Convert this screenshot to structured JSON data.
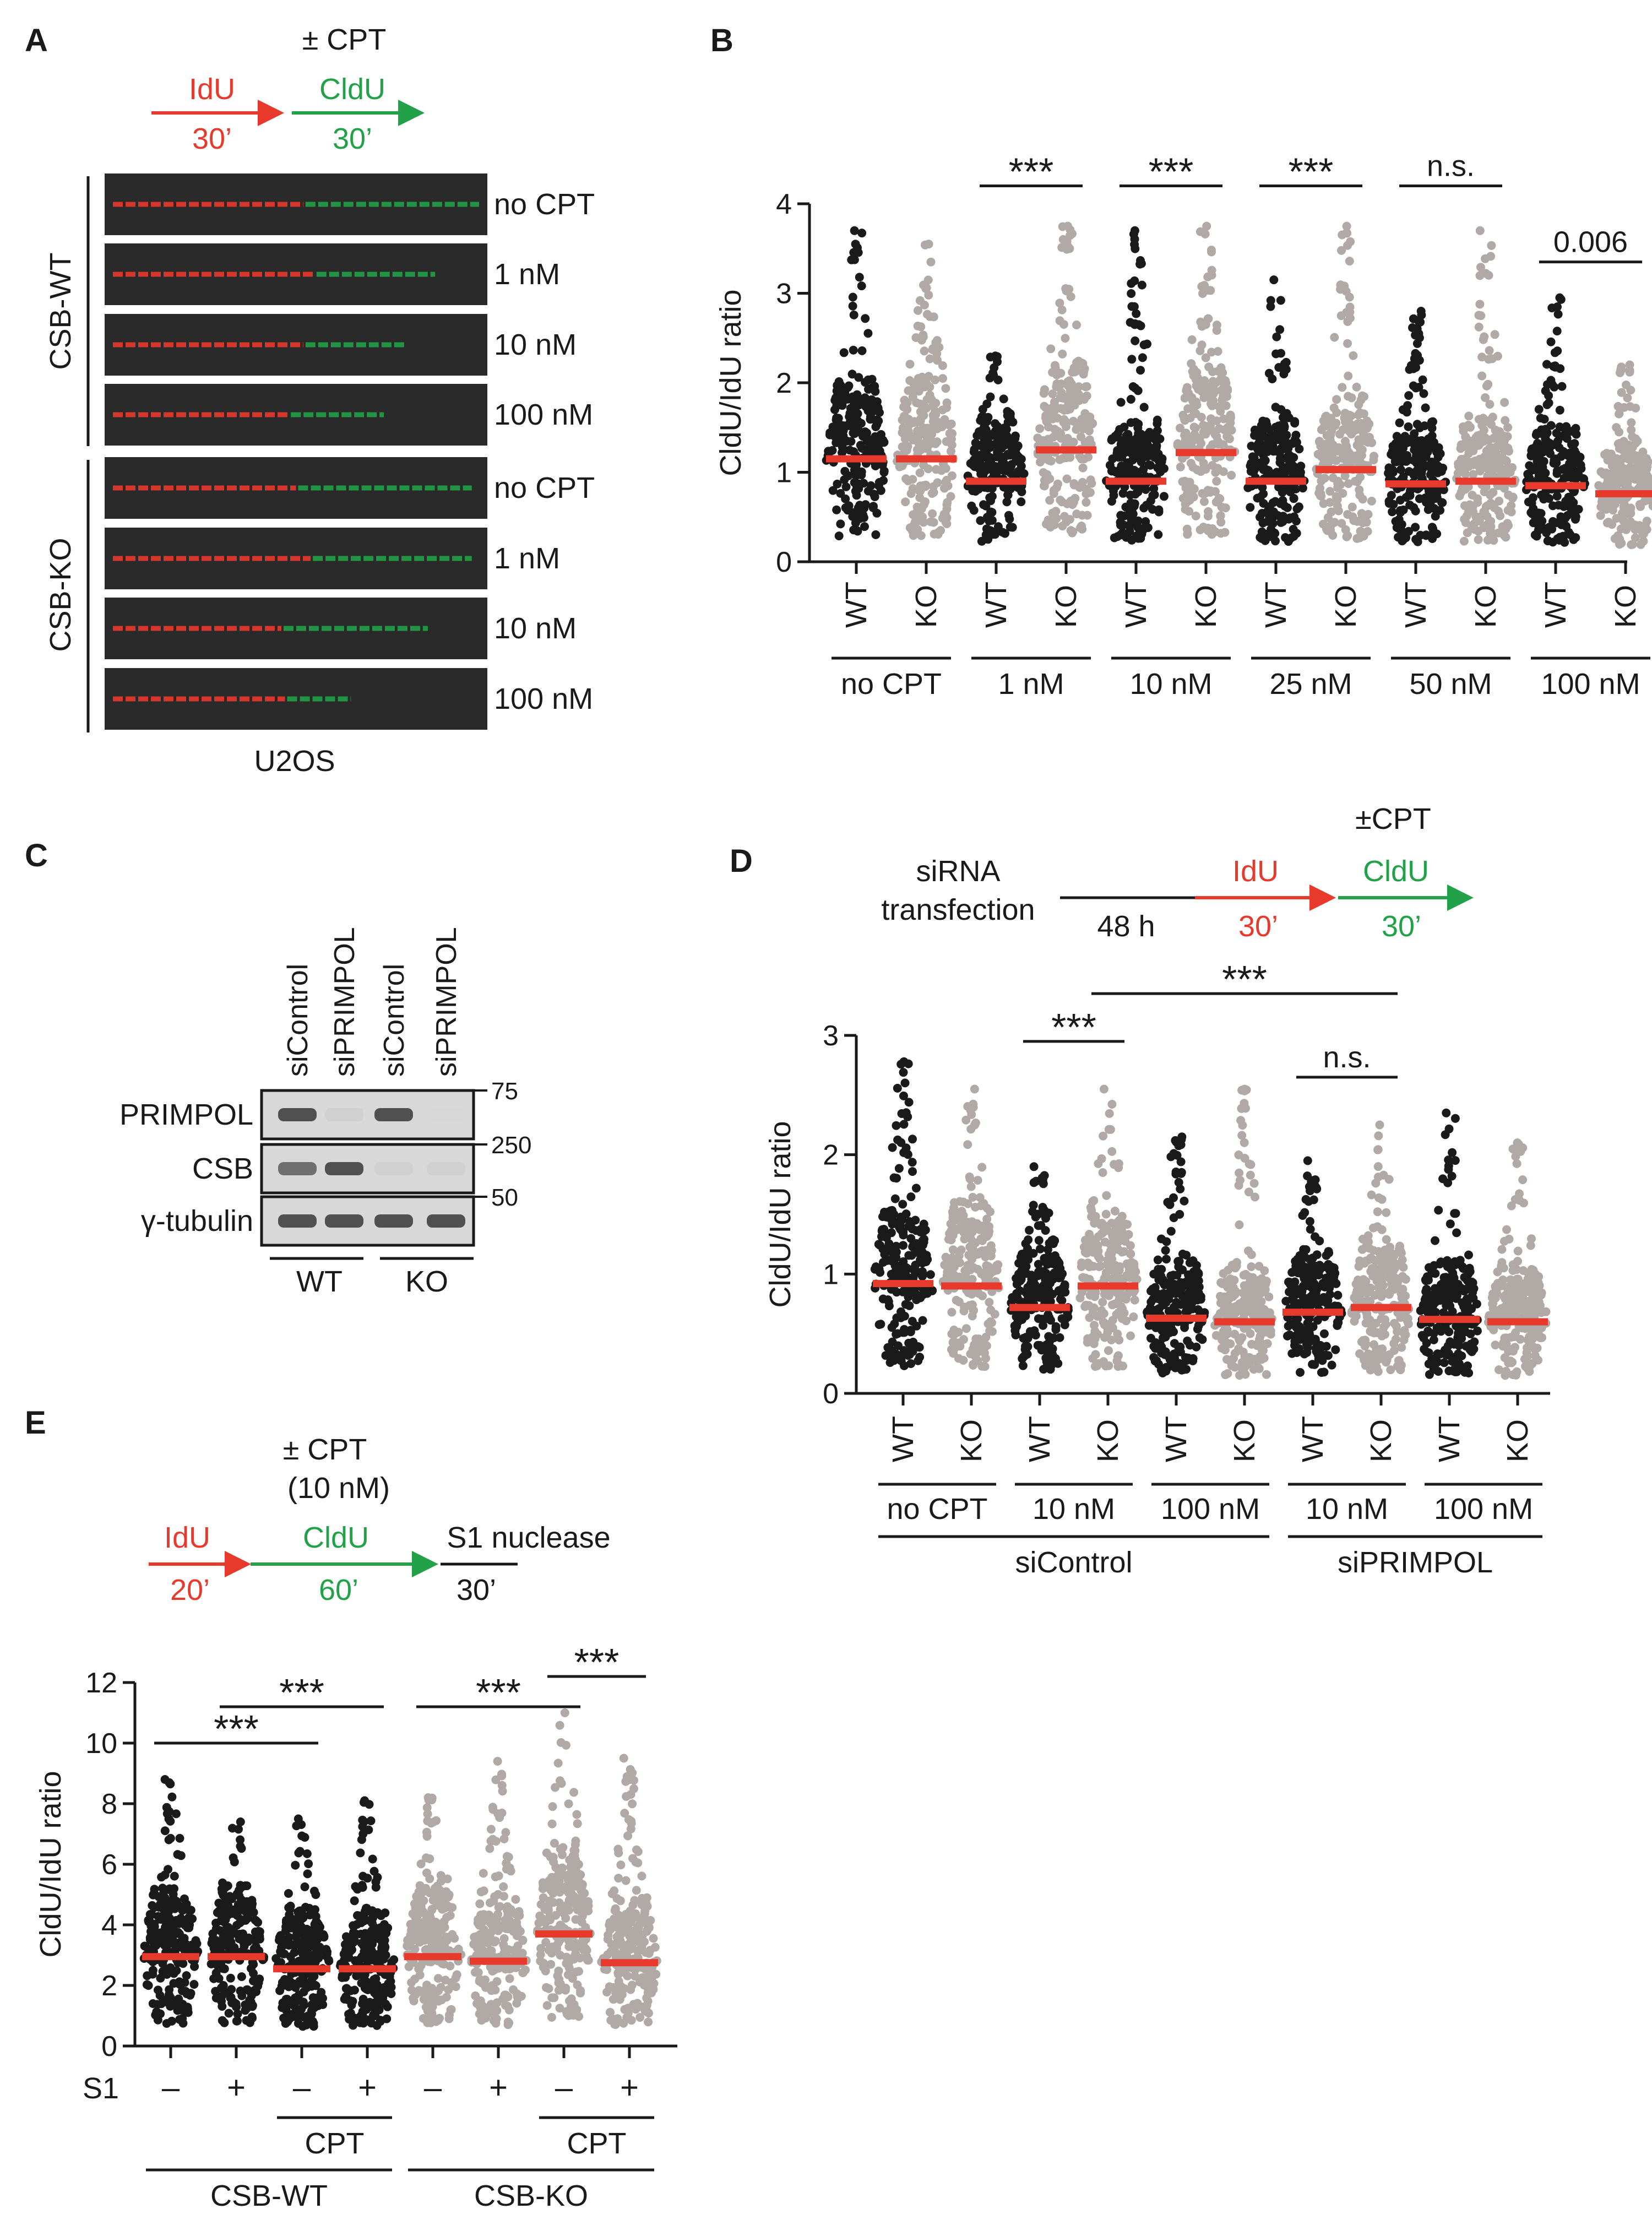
{
  "panel_letters": {
    "A": "A",
    "B": "B",
    "C": "C",
    "D": "D",
    "E": "E"
  },
  "colors": {
    "red": "#e8392d",
    "green": "#22a148",
    "black": "#1a1a1a",
    "grey": "#b0a9a6",
    "median": "#e8392d"
  },
  "panel_a": {
    "cpt": "± CPT",
    "idu": "IdU",
    "idu_time": "30’",
    "cldu": "CldU",
    "cldu_time": "30’",
    "group_wt": "CSB-WT",
    "group_ko": "CSB-KO",
    "rows": [
      {
        "group": "wt",
        "label": "no CPT",
        "red_frac": 0.52,
        "green_frac": 0.48
      },
      {
        "group": "wt",
        "label": "1 nM",
        "red_frac": 0.55,
        "green_frac": 0.33
      },
      {
        "group": "wt",
        "label": "10 nM",
        "red_frac": 0.52,
        "green_frac": 0.28
      },
      {
        "group": "wt",
        "label": "100 nM",
        "red_frac": 0.48,
        "green_frac": 0.26
      },
      {
        "group": "ko",
        "label": "no CPT",
        "red_frac": 0.5,
        "green_frac": 0.48
      },
      {
        "group": "ko",
        "label": "1 nM",
        "red_frac": 0.54,
        "green_frac": 0.44
      },
      {
        "group": "ko",
        "label": "10 nM",
        "red_frac": 0.46,
        "green_frac": 0.4
      },
      {
        "group": "ko",
        "label": "100 nM",
        "red_frac": 0.47,
        "green_frac": 0.18
      }
    ],
    "cell_line": "U2OS"
  },
  "panel_c": {
    "lanes": [
      "siControl",
      "siPRIMPOL",
      "siControl",
      "siPRIMPOL"
    ],
    "proteins": [
      "PRIMPOL",
      "CSB",
      "γ-tubulin"
    ],
    "markers": [
      "75",
      "250",
      "50"
    ],
    "groups": [
      "WT",
      "KO"
    ],
    "band_intensity": [
      [
        1,
        0.15,
        1,
        0.1
      ],
      [
        0.8,
        1,
        0.15,
        0.15
      ],
      [
        1,
        1,
        1,
        1
      ]
    ]
  },
  "panel_d_protocol": {
    "cpt": "±CPT",
    "sirna": "siRNA",
    "transfection": "transfection",
    "duration": "48 h",
    "idu": "IdU",
    "idu_time": "30’",
    "cldu": "CldU",
    "cldu_time": "30’"
  },
  "panel_e_protocol": {
    "cpt": "± CPT",
    "cpt_conc": "(10 nM)",
    "idu": "IdU",
    "idu_time": "20’",
    "cldu": "CldU",
    "cldu_time": "60’",
    "s1": "S1 nuclease",
    "s1_time": "30’"
  },
  "chart_data": [
    {
      "type": "scatter",
      "panel": "B",
      "ylabel": "CldU/IdU ratio",
      "ylim": [
        0,
        4
      ],
      "yticks": [
        "0",
        "1",
        "2",
        "3",
        "4"
      ],
      "x_labels": [
        "WT",
        "KO",
        "WT",
        "KO",
        "WT",
        "KO",
        "WT",
        "KO",
        "WT",
        "KO",
        "WT",
        "KO"
      ],
      "series_colors": [
        "black",
        "grey",
        "black",
        "grey",
        "black",
        "grey",
        "black",
        "grey",
        "black",
        "grey",
        "black",
        "grey"
      ],
      "medians": [
        1.15,
        1.15,
        0.9,
        1.25,
        0.9,
        1.22,
        0.9,
        1.03,
        0.87,
        0.9,
        0.85,
        0.76
      ],
      "maxima": [
        3.7,
        3.55,
        2.3,
        3.75,
        3.7,
        3.75,
        3.15,
        3.75,
        2.8,
        3.7,
        2.95,
        2.2
      ],
      "conditions": [
        {
          "label": "no CPT",
          "from": 0,
          "to": 1
        },
        {
          "label": "1 nM",
          "from": 2,
          "to": 3
        },
        {
          "label": "10 nM",
          "from": 4,
          "to": 5
        },
        {
          "label": "25 nM",
          "from": 6,
          "to": 7
        },
        {
          "label": "50 nM",
          "from": 8,
          "to": 9
        },
        {
          "label": "100 nM",
          "from": 10,
          "to": 11
        }
      ],
      "annotations": [
        {
          "text": "***",
          "from": 2,
          "to": 3,
          "y": 4.2
        },
        {
          "text": "***",
          "from": 4,
          "to": 5,
          "y": 4.2
        },
        {
          "text": "***",
          "from": 6,
          "to": 7,
          "y": 4.2
        },
        {
          "text": "n.s.",
          "from": 8,
          "to": 9,
          "y": 4.2
        },
        {
          "text": "0.006",
          "from": 10,
          "to": 11,
          "y": 3.35
        }
      ]
    },
    {
      "type": "scatter",
      "panel": "D",
      "ylabel": "CldU/IdU ratio",
      "ylim": [
        0,
        3
      ],
      "yticks": [
        "0",
        "1",
        "2",
        "3"
      ],
      "x_labels": [
        "WT",
        "KO",
        "WT",
        "KO",
        "WT",
        "KO",
        "WT",
        "KO",
        "WT",
        "KO"
      ],
      "series_colors": [
        "black",
        "grey",
        "black",
        "grey",
        "black",
        "grey",
        "black",
        "grey",
        "black",
        "grey"
      ],
      "medians": [
        0.92,
        0.9,
        0.72,
        0.9,
        0.63,
        0.6,
        0.68,
        0.72,
        0.62,
        0.6
      ],
      "maxima": [
        2.78,
        2.55,
        1.9,
        2.55,
        2.15,
        2.55,
        1.95,
        2.25,
        2.35,
        2.1
      ],
      "conditions": [
        {
          "label": "no CPT",
          "from": 0,
          "to": 1
        },
        {
          "label": "10 nM",
          "from": 2,
          "to": 3
        },
        {
          "label": "100 nM",
          "from": 4,
          "to": 5
        },
        {
          "label": "10 nM",
          "from": 6,
          "to": 7
        },
        {
          "label": "100 nM",
          "from": 8,
          "to": 9
        }
      ],
      "groups": [
        {
          "label": "siControl",
          "from": 0,
          "to": 5
        },
        {
          "label": "siPRIMPOL",
          "from": 6,
          "to": 9
        }
      ],
      "annotations": [
        {
          "text": "***",
          "from": 2,
          "to": 3,
          "y": 2.95
        },
        {
          "text": "***",
          "from": 3,
          "to": 7,
          "y": 3.35
        },
        {
          "text": "n.s.",
          "from": 6,
          "to": 7,
          "y": 2.65
        }
      ]
    },
    {
      "type": "scatter",
      "panel": "E",
      "ylabel": "CldU/IdU ratio",
      "ylim": [
        0,
        12
      ],
      "yticks": [
        "0",
        "2",
        "4",
        "6",
        "8",
        "10",
        "12"
      ],
      "row_label": "S1",
      "x_labels": [
        "–",
        "+",
        "–",
        "+",
        "–",
        "+",
        "–",
        "+"
      ],
      "series_colors": [
        "black",
        "black",
        "black",
        "black",
        "grey",
        "grey",
        "grey",
        "grey"
      ],
      "medians": [
        2.95,
        2.95,
        2.55,
        2.55,
        2.95,
        2.8,
        3.7,
        2.75
      ],
      "maxima": [
        8.8,
        7.4,
        7.5,
        8.1,
        8.2,
        9.4,
        11.0,
        9.5
      ],
      "cpt_groups": [
        {
          "label": "CPT",
          "from": 2,
          "to": 3
        },
        {
          "label": "CPT",
          "from": 6,
          "to": 7
        }
      ],
      "groups": [
        {
          "label": "CSB-WT",
          "from": 0,
          "to": 3
        },
        {
          "label": "CSB-KO",
          "from": 4,
          "to": 7
        }
      ],
      "annotations": [
        {
          "text": "***",
          "from": 0,
          "to": 2,
          "y": 10.0
        },
        {
          "text": "***",
          "from": 1,
          "to": 3,
          "y": 11.2
        },
        {
          "text": "***",
          "from": 4,
          "to": 6,
          "y": 11.2
        },
        {
          "text": "***",
          "from": 6,
          "to": 7,
          "y": 12.2
        }
      ]
    }
  ]
}
